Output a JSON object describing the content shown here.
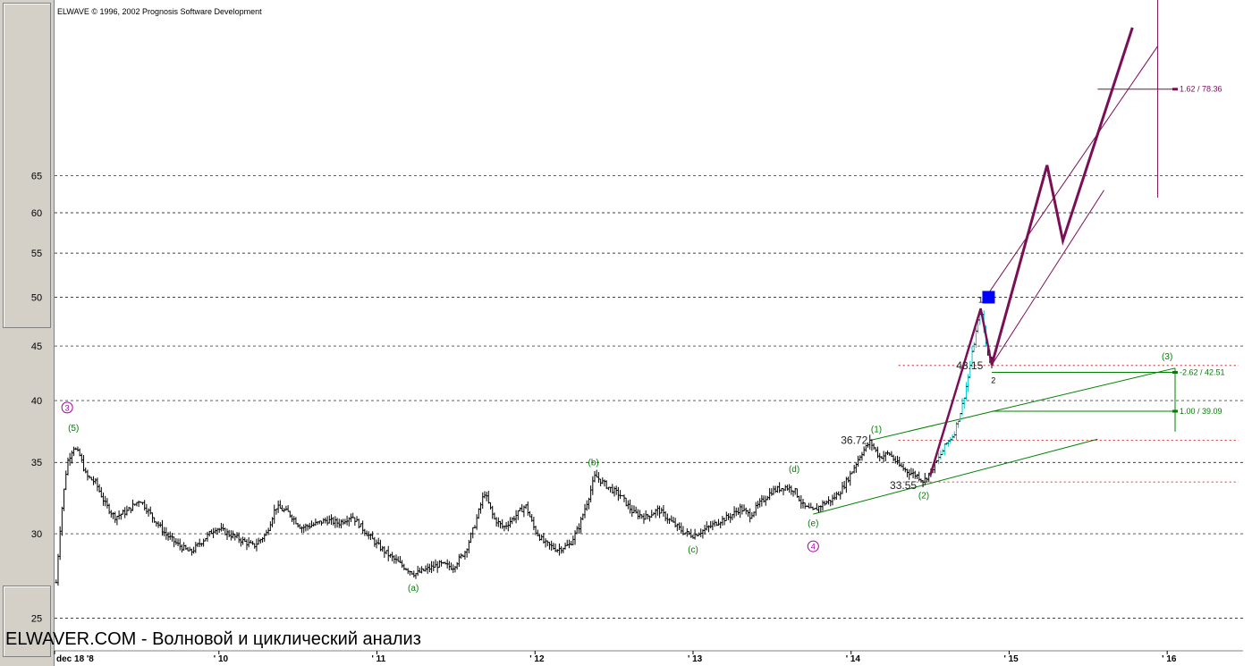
{
  "header": {
    "title": "ELWAVE © 1996, 2002 Prognosis Software Development"
  },
  "footer": {
    "watermark": "ELWAVER.COM - Волновой и циклический анализ"
  },
  "colors": {
    "background": "#ffffff",
    "candles": "#000000",
    "grid": "#000000",
    "projection": "#7a0f56",
    "channel_green": "#008000",
    "wave_green": "#008000",
    "wave_purple": "#a000a0",
    "fib_red": "#cc0000",
    "highlight": "#0000ff",
    "accent_cyan": "#00c8c8"
  },
  "chart_data": {
    "type": "candlestick",
    "title": "",
    "xlabel": "",
    "ylabel": "",
    "y_ticks": [
      25,
      30,
      35,
      40,
      45,
      50,
      55,
      60,
      65
    ],
    "ylim": [
      23.3,
      95
    ],
    "y_scale": "log",
    "xlim": [
      2008.96,
      2016.48
    ],
    "x_ticks": [
      {
        "label": "dec 18 '8",
        "x": 2008.96
      },
      {
        "label": "' 10",
        "x": 2010.0
      },
      {
        "label": "' 11",
        "x": 2011.0
      },
      {
        "label": "' 12",
        "x": 2012.0
      },
      {
        "label": "' 13",
        "x": 2013.0
      },
      {
        "label": "' 14",
        "x": 2014.0
      },
      {
        "label": "' 15",
        "x": 2015.0
      },
      {
        "label": "' 16",
        "x": 2016.0
      }
    ],
    "grid": "horizontal dashed",
    "price_path": [
      [
        2008.97,
        27.0
      ],
      [
        2009.0,
        31.0
      ],
      [
        2009.04,
        35.0
      ],
      [
        2009.08,
        36.2
      ],
      [
        2009.12,
        35.5
      ],
      [
        2009.16,
        34.0
      ],
      [
        2009.22,
        33.5
      ],
      [
        2009.28,
        32.0
      ],
      [
        2009.34,
        31.1
      ],
      [
        2009.42,
        31.5
      ],
      [
        2009.5,
        32.3
      ],
      [
        2009.58,
        31.1
      ],
      [
        2009.66,
        30.0
      ],
      [
        2009.74,
        29.3
      ],
      [
        2009.82,
        28.8
      ],
      [
        2009.9,
        29.6
      ],
      [
        2009.98,
        30.4
      ],
      [
        2010.06,
        30.0
      ],
      [
        2010.14,
        29.6
      ],
      [
        2010.22,
        29.2
      ],
      [
        2010.3,
        30.0
      ],
      [
        2010.36,
        31.8
      ],
      [
        2010.44,
        31.4
      ],
      [
        2010.52,
        30.4
      ],
      [
        2010.6,
        30.6
      ],
      [
        2010.68,
        30.9
      ],
      [
        2010.76,
        30.7
      ],
      [
        2010.84,
        31.2
      ],
      [
        2010.92,
        30.2
      ],
      [
        2011.0,
        29.3
      ],
      [
        2011.08,
        28.6
      ],
      [
        2011.16,
        28.0
      ],
      [
        2011.24,
        27.5
      ],
      [
        2011.32,
        27.8
      ],
      [
        2011.4,
        28.1
      ],
      [
        2011.48,
        27.9
      ],
      [
        2011.56,
        28.9
      ],
      [
        2011.62,
        30.6
      ],
      [
        2011.68,
        32.8
      ],
      [
        2011.74,
        31.0
      ],
      [
        2011.8,
        30.4
      ],
      [
        2011.86,
        31.0
      ],
      [
        2011.94,
        31.9
      ],
      [
        2012.0,
        30.2
      ],
      [
        2012.06,
        29.4
      ],
      [
        2012.14,
        29.0
      ],
      [
        2012.22,
        29.3
      ],
      [
        2012.28,
        30.5
      ],
      [
        2012.34,
        32.5
      ],
      [
        2012.38,
        34.0
      ],
      [
        2012.46,
        33.2
      ],
      [
        2012.54,
        32.6
      ],
      [
        2012.62,
        31.4
      ],
      [
        2012.7,
        31.1
      ],
      [
        2012.78,
        31.6
      ],
      [
        2012.86,
        30.8
      ],
      [
        2012.94,
        30.1
      ],
      [
        2013.0,
        29.9
      ],
      [
        2013.08,
        30.3
      ],
      [
        2013.16,
        30.8
      ],
      [
        2013.24,
        31.2
      ],
      [
        2013.3,
        31.7
      ],
      [
        2013.36,
        31.2
      ],
      [
        2013.42,
        32.0
      ],
      [
        2013.5,
        32.9
      ],
      [
        2013.58,
        33.2
      ],
      [
        2013.64,
        33.0
      ],
      [
        2013.7,
        31.8
      ],
      [
        2013.76,
        31.5
      ],
      [
        2013.82,
        32.0
      ],
      [
        2013.88,
        32.3
      ],
      [
        2013.94,
        33.0
      ],
      [
        2014.0,
        34.2
      ],
      [
        2014.06,
        35.6
      ],
      [
        2014.12,
        36.6
      ],
      [
        2014.18,
        35.4
      ],
      [
        2014.24,
        35.7
      ],
      [
        2014.3,
        34.8
      ],
      [
        2014.36,
        34.3
      ],
      [
        2014.42,
        34.0
      ],
      [
        2014.46,
        33.6
      ],
      [
        2014.5,
        34.3
      ],
      [
        2014.55,
        35.2
      ],
      [
        2014.6,
        36.4
      ],
      [
        2014.65,
        37.2
      ],
      [
        2014.7,
        39.4
      ],
      [
        2014.74,
        42.0
      ],
      [
        2014.78,
        45.5
      ],
      [
        2014.82,
        48.8
      ],
      [
        2014.86,
        44.5
      ],
      [
        2014.89,
        43.2
      ]
    ],
    "projection_path": [
      [
        2014.89,
        43.2
      ],
      [
        2015.24,
        66.5
      ],
      [
        2015.34,
        56.5
      ],
      [
        2015.78,
        89.5
      ]
    ],
    "wave_labels": [
      {
        "text": "3",
        "x": 2009.04,
        "y": 39.4,
        "style": "purple-circle"
      },
      {
        "text": "(5)",
        "x": 2009.08,
        "y": 37.7,
        "style": "green"
      },
      {
        "text": "(a)",
        "x": 2011.23,
        "y": 26.7,
        "style": "green"
      },
      {
        "text": "(b)",
        "x": 2012.37,
        "y": 35.0,
        "style": "green"
      },
      {
        "text": "(c)",
        "x": 2013.0,
        "y": 29.0,
        "style": "green"
      },
      {
        "text": "(d)",
        "x": 2013.64,
        "y": 34.5,
        "style": "green"
      },
      {
        "text": "(e)",
        "x": 2013.76,
        "y": 30.7,
        "style": "green"
      },
      {
        "text": "4",
        "x": 2013.76,
        "y": 29.2,
        "style": "purple-circle"
      },
      {
        "text": "(1)",
        "x": 2014.16,
        "y": 37.6,
        "style": "green"
      },
      {
        "text": "(2)",
        "x": 2014.46,
        "y": 32.6,
        "style": "green"
      },
      {
        "text": "(3)",
        "x": 2016.0,
        "y": 44.0,
        "style": "green"
      },
      {
        "text": "1",
        "x": 2014.82,
        "y": 49.7,
        "style": "black-small"
      },
      {
        "text": "2",
        "x": 2014.9,
        "y": 41.8,
        "style": "black-small"
      }
    ],
    "price_labels": [
      {
        "text": "36.72",
        "x": 2014.02,
        "y": 36.72
      },
      {
        "text": "33.55",
        "x": 2014.33,
        "y": 33.3
      },
      {
        "text": "43.15",
        "x": 2014.75,
        "y": 43.15
      }
    ],
    "fib_levels": [
      {
        "text": "1.62 / 78.36",
        "y": 78.36,
        "x_start": 2015.56,
        "color": "purple"
      },
      {
        "text": "-2.62 / 42.51",
        "y": 42.51,
        "x_start": 2014.89,
        "color": "green"
      },
      {
        "text": "1.00 / 39.09",
        "y": 39.09,
        "x_start": 2014.89,
        "color": "green"
      }
    ],
    "red_dotted_levels": [
      43.15,
      36.72,
      33.55
    ],
    "target_marker": {
      "x": 2014.87,
      "y": 50.0
    }
  }
}
